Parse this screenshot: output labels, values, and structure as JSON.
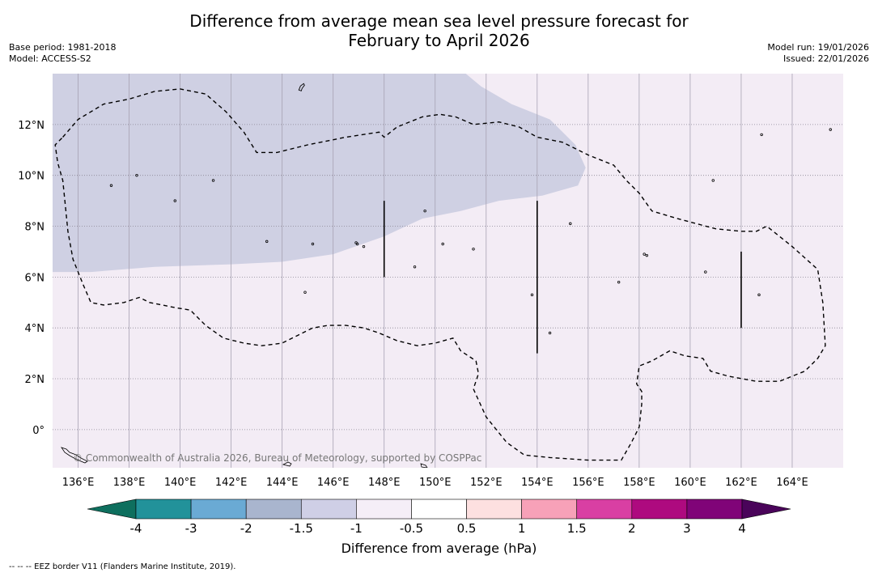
{
  "title": {
    "line1": "Difference from average mean sea level pressure forecast for",
    "line2": "February to April 2026"
  },
  "meta": {
    "base_period": "Base period: 1981-2018",
    "model": "Model: ACCESS-S2",
    "model_run": "Model run: 19/01/2026",
    "issued": "Issued: 22/01/2026"
  },
  "map": {
    "lon_range": [
      135,
      166
    ],
    "lat_range": [
      -1.5,
      14
    ],
    "lat_ticks": [
      {
        "value": 12,
        "label": "12°N"
      },
      {
        "value": 10,
        "label": "10°N"
      },
      {
        "value": 8,
        "label": "8°N"
      },
      {
        "value": 6,
        "label": "6°N"
      },
      {
        "value": 4,
        "label": "4°N"
      },
      {
        "value": 2,
        "label": "2°N"
      },
      {
        "value": 0,
        "label": "0°"
      }
    ],
    "lon_ticks": [
      {
        "value": 136,
        "label": "136°E"
      },
      {
        "value": 138,
        "label": "138°E"
      },
      {
        "value": 140,
        "label": "140°E"
      },
      {
        "value": 142,
        "label": "142°E"
      },
      {
        "value": 144,
        "label": "144°E"
      },
      {
        "value": 146,
        "label": "146°E"
      },
      {
        "value": 148,
        "label": "148°E"
      },
      {
        "value": 150,
        "label": "150°E"
      },
      {
        "value": 152,
        "label": "152°E"
      },
      {
        "value": 154,
        "label": "154°E"
      },
      {
        "value": 156,
        "label": "156°E"
      },
      {
        "value": 158,
        "label": "158°E"
      },
      {
        "value": 160,
        "label": "160°E"
      },
      {
        "value": 162,
        "label": "162°E"
      },
      {
        "value": 164,
        "label": "164°E"
      }
    ],
    "background_category": "-1 to -0.5",
    "background_color": "#f3ecf5",
    "anomaly_region": {
      "category": "-1.5 to -1",
      "color": "#cfd0e3",
      "outline": [
        [
          135,
          14
        ],
        [
          151.2,
          14
        ],
        [
          151.8,
          13.5
        ],
        [
          153,
          12.8
        ],
        [
          154.5,
          12.2
        ],
        [
          155.5,
          11.2
        ],
        [
          155.9,
          10.3
        ],
        [
          155.6,
          9.6
        ],
        [
          154.2,
          9.2
        ],
        [
          152.5,
          9.0
        ],
        [
          151,
          8.6
        ],
        [
          149.5,
          8.3
        ],
        [
          148,
          7.6
        ],
        [
          146,
          6.9
        ],
        [
          144,
          6.6
        ],
        [
          142,
          6.5
        ],
        [
          139,
          6.4
        ],
        [
          136.5,
          6.2
        ],
        [
          135,
          6.2
        ]
      ]
    },
    "eez_border": [
      [
        135.4,
        11.5
      ],
      [
        136,
        12.2
      ],
      [
        137,
        12.8
      ],
      [
        138,
        13
      ],
      [
        139,
        13.3
      ],
      [
        140,
        13.4
      ],
      [
        141,
        13.2
      ],
      [
        141.8,
        12.5
      ],
      [
        142.5,
        11.7
      ],
      [
        143,
        10.9
      ],
      [
        143.8,
        10.9
      ],
      [
        145,
        11.2
      ],
      [
        146.5,
        11.5
      ],
      [
        147.8,
        11.7
      ],
      [
        148,
        11.5
      ],
      [
        148.5,
        11.9
      ],
      [
        149.5,
        12.3
      ],
      [
        150.2,
        12.4
      ],
      [
        150.8,
        12.3
      ],
      [
        151.5,
        12.0
      ],
      [
        152.5,
        12.1
      ],
      [
        153.3,
        11.9
      ],
      [
        154,
        11.5
      ],
      [
        155,
        11.3
      ],
      [
        156,
        10.8
      ],
      [
        157,
        10.4
      ],
      [
        157.5,
        9.8
      ],
      [
        158,
        9.3
      ],
      [
        158.5,
        8.6
      ],
      [
        159.5,
        8.3
      ],
      [
        161,
        7.9
      ],
      [
        162,
        7.8
      ],
      [
        162.6,
        7.8
      ],
      [
        163,
        8
      ],
      [
        164,
        7.2
      ],
      [
        165,
        6.3
      ],
      [
        165.2,
        5
      ],
      [
        165.3,
        3.3
      ],
      [
        165,
        2.8
      ],
      [
        164.5,
        2.3
      ],
      [
        163.5,
        1.9
      ],
      [
        162.6,
        1.9
      ],
      [
        161.5,
        2.1
      ],
      [
        160.8,
        2.3
      ],
      [
        160.5,
        2.8
      ],
      [
        159.8,
        2.9
      ],
      [
        159.2,
        3.1
      ],
      [
        158.5,
        2.7
      ],
      [
        158,
        2.5
      ],
      [
        157.9,
        1.8
      ],
      [
        158.1,
        1.5
      ],
      [
        158.1,
        1
      ],
      [
        158,
        0.1
      ],
      [
        157.7,
        -0.5
      ],
      [
        157.3,
        -1.2
      ],
      [
        156,
        -1.2
      ],
      [
        154.5,
        -1.1
      ],
      [
        153.5,
        -1
      ],
      [
        152.8,
        -0.5
      ],
      [
        152,
        0.5
      ],
      [
        151.5,
        1.6
      ],
      [
        151.7,
        2.2
      ],
      [
        151.6,
        2.7
      ],
      [
        151,
        3.1
      ],
      [
        150.7,
        3.6
      ],
      [
        150,
        3.4
      ],
      [
        149.3,
        3.3
      ],
      [
        148.5,
        3.5
      ],
      [
        147.8,
        3.8
      ],
      [
        147.2,
        4.0
      ],
      [
        146.5,
        4.1
      ],
      [
        145.8,
        4.1
      ],
      [
        145.2,
        4.0
      ],
      [
        144.6,
        3.7
      ],
      [
        144,
        3.4
      ],
      [
        143.2,
        3.3
      ],
      [
        142.5,
        3.4
      ],
      [
        141.7,
        3.6
      ],
      [
        141,
        4.1
      ],
      [
        140.4,
        4.7
      ],
      [
        139.8,
        4.8
      ],
      [
        138.8,
        5.0
      ],
      [
        138.4,
        5.2
      ],
      [
        137.8,
        5.0
      ],
      [
        137,
        4.9
      ],
      [
        136.5,
        5.0
      ],
      [
        136.2,
        5.7
      ],
      [
        135.8,
        6.7
      ],
      [
        135.6,
        7.8
      ],
      [
        135.5,
        8.8
      ],
      [
        135.4,
        9.8
      ],
      [
        135.2,
        10.5
      ],
      [
        135.1,
        11.2
      ],
      [
        135.4,
        11.5
      ]
    ],
    "vertical_lines": [
      {
        "lon": 148,
        "lat_top": 9.0,
        "lat_bottom": 6.0
      },
      {
        "lon": 154,
        "lat_top": 9.0,
        "lat_bottom": 3.0
      },
      {
        "lon": 162,
        "lat_top": 7.0,
        "lat_bottom": 4.0
      }
    ],
    "islands": [
      [
        137.3,
        9.6
      ],
      [
        138.3,
        10.0
      ],
      [
        145.2,
        7.3
      ],
      [
        146.9,
        7.35
      ],
      [
        146.95,
        7.3
      ],
      [
        149.6,
        8.6
      ],
      [
        150.3,
        7.3
      ],
      [
        155.3,
        8.1
      ],
      [
        158.2,
        6.9
      ],
      [
        158.3,
        6.85
      ],
      [
        153.8,
        5.3
      ],
      [
        154.5,
        3.8
      ],
      [
        162.7,
        5.3
      ],
      [
        162.8,
        11.6
      ],
      [
        165.5,
        11.8
      ],
      [
        160.9,
        9.8
      ],
      [
        149.2,
        6.4
      ],
      [
        151.5,
        7.1
      ],
      [
        157.2,
        5.8
      ],
      [
        160.6,
        6.2
      ],
      [
        139.8,
        9.0
      ],
      [
        141.3,
        9.8
      ],
      [
        144.9,
        5.4
      ],
      [
        143.4,
        7.4
      ],
      [
        147.2,
        7.2
      ]
    ],
    "guam": [
      144.75,
      13.45
    ],
    "copyright": "© Commonwealth of Australia 2026, Bureau of Meteorology, supported by COSPPac"
  },
  "colorbar": {
    "bins": [
      {
        "color": "#0e6f5e"
      },
      {
        "color": "#22929a"
      },
      {
        "color": "#6aaad4"
      },
      {
        "color": "#a9b5ce"
      },
      {
        "color": "#cfcfe6"
      },
      {
        "color": "#f5eef7"
      },
      {
        "color": "#ffffff"
      },
      {
        "color": "#fde0e0"
      },
      {
        "color": "#f7a1b8"
      },
      {
        "color": "#d93fa3"
      },
      {
        "color": "#ae0a7f"
      },
      {
        "color": "#800478"
      },
      {
        "color": "#4a045a"
      }
    ],
    "tick_labels": [
      "-4",
      "-3",
      "-2",
      "-1.5",
      "-1",
      "-0.5",
      "0.5",
      "1",
      "1.5",
      "2",
      "3",
      "4"
    ],
    "title": "Difference from average (hPa)"
  },
  "footnote": "--  --  -- EEZ border V11 (Flanders Marine Institute, 2019)."
}
